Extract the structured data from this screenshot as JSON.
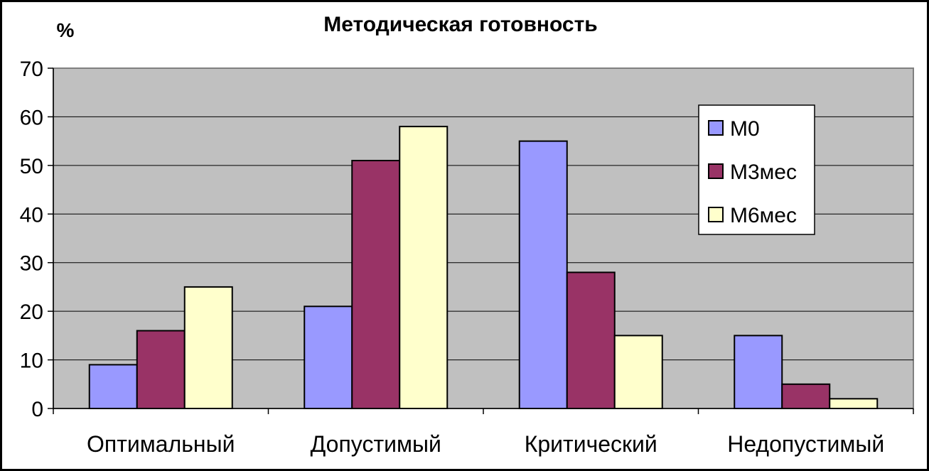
{
  "chart_data": {
    "type": "bar",
    "title": "Методическая готовность",
    "ylabel": "%",
    "xlabel": "",
    "ylim": [
      0,
      70
    ],
    "yticks": [
      0,
      10,
      20,
      30,
      40,
      50,
      60,
      70
    ],
    "categories": [
      "Оптимальный",
      "Допустимый",
      "Критический",
      "Недопустимый"
    ],
    "series": [
      {
        "name": "М0",
        "values": [
          9,
          21,
          55,
          15
        ],
        "color": "#9999ff"
      },
      {
        "name": "М3мес",
        "values": [
          16,
          51,
          28,
          5
        ],
        "color": "#993366"
      },
      {
        "name": "М6мес",
        "values": [
          25,
          58,
          15,
          2
        ],
        "color": "#ffffcc"
      }
    ],
    "plot_background": "#c0c0c0",
    "grid": true,
    "legend": {
      "position": "right"
    }
  }
}
